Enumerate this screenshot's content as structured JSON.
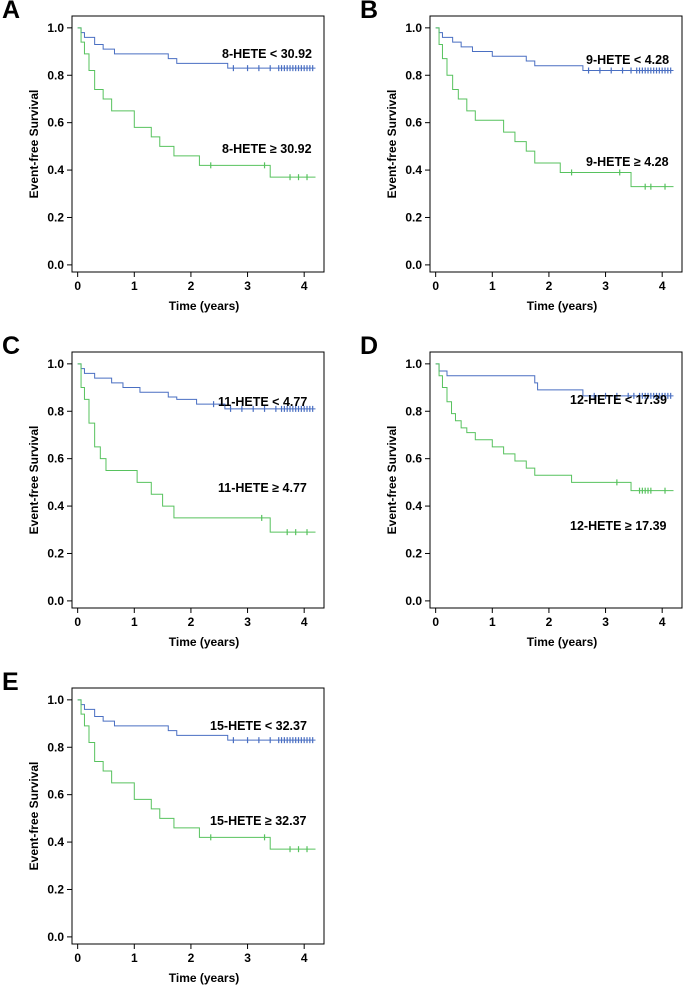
{
  "chart_data": [
    {
      "type": "line",
      "panel": "A",
      "xlabel": "Time (years)",
      "ylabel": "Event-free Survival",
      "xlim": [
        -0.1,
        4.35
      ],
      "ylim": [
        -0.03,
        1.05
      ],
      "xticks": [
        0,
        1,
        2,
        3,
        4
      ],
      "yticks": [
        0.0,
        0.2,
        0.4,
        0.6,
        0.8,
        1.0
      ],
      "ytick_labels": [
        "0.0",
        "0.2",
        "0.4",
        "0.6",
        "0.8",
        "1.0"
      ],
      "series": [
        {
          "name": "8-HETE < 30.92",
          "color": "#4a6fc2",
          "steps": [
            [
              0,
              1.0
            ],
            [
              0.06,
              0.98
            ],
            [
              0.12,
              0.96
            ],
            [
              0.3,
              0.93
            ],
            [
              0.45,
              0.91
            ],
            [
              0.65,
              0.89
            ],
            [
              1.6,
              0.87
            ],
            [
              1.75,
              0.85
            ],
            [
              2.65,
              0.83
            ],
            [
              4.2,
              0.83
            ]
          ],
          "censored": [
            2.75,
            3.0,
            3.2,
            3.4,
            3.55,
            3.6,
            3.65,
            3.7,
            3.75,
            3.8,
            3.85,
            3.9,
            3.95,
            4.0,
            4.05,
            4.1,
            4.15
          ]
        },
        {
          "name": "8-HETE ≥ 30.92",
          "color": "#57c25e",
          "steps": [
            [
              0,
              1.0
            ],
            [
              0.06,
              0.94
            ],
            [
              0.12,
              0.89
            ],
            [
              0.2,
              0.82
            ],
            [
              0.3,
              0.74
            ],
            [
              0.45,
              0.7
            ],
            [
              0.6,
              0.65
            ],
            [
              1.0,
              0.58
            ],
            [
              1.3,
              0.54
            ],
            [
              1.45,
              0.5
            ],
            [
              1.7,
              0.46
            ],
            [
              2.15,
              0.42
            ],
            [
              3.4,
              0.37
            ],
            [
              4.2,
              0.37
            ]
          ],
          "censored": [
            2.35,
            3.3,
            3.75,
            3.9,
            4.05
          ]
        }
      ]
    },
    {
      "type": "line",
      "panel": "B",
      "xlabel": "Time (years)",
      "ylabel": "Event-free Survival",
      "xlim": [
        -0.1,
        4.35
      ],
      "ylim": [
        -0.03,
        1.05
      ],
      "xticks": [
        0,
        1,
        2,
        3,
        4
      ],
      "yticks": [
        0.0,
        0.2,
        0.4,
        0.6,
        0.8,
        1.0
      ],
      "ytick_labels": [
        "0.0",
        "0.2",
        "0.4",
        "0.6",
        "0.8",
        "1.0"
      ],
      "series": [
        {
          "name": "9-HETE < 4.28",
          "color": "#4a6fc2",
          "steps": [
            [
              0,
              1.0
            ],
            [
              0.06,
              0.98
            ],
            [
              0.12,
              0.96
            ],
            [
              0.3,
              0.94
            ],
            [
              0.45,
              0.92
            ],
            [
              0.65,
              0.9
            ],
            [
              1.0,
              0.88
            ],
            [
              1.6,
              0.86
            ],
            [
              1.75,
              0.84
            ],
            [
              2.6,
              0.82
            ],
            [
              4.2,
              0.82
            ]
          ],
          "censored": [
            2.7,
            2.9,
            3.1,
            3.3,
            3.45,
            3.55,
            3.6,
            3.65,
            3.7,
            3.75,
            3.8,
            3.85,
            3.9,
            3.95,
            4.0,
            4.05,
            4.1,
            4.15
          ]
        },
        {
          "name": "9-HETE ≥ 4.28",
          "color": "#57c25e",
          "steps": [
            [
              0,
              1.0
            ],
            [
              0.06,
              0.93
            ],
            [
              0.12,
              0.87
            ],
            [
              0.2,
              0.8
            ],
            [
              0.3,
              0.74
            ],
            [
              0.4,
              0.7
            ],
            [
              0.55,
              0.65
            ],
            [
              0.7,
              0.61
            ],
            [
              1.2,
              0.56
            ],
            [
              1.4,
              0.52
            ],
            [
              1.6,
              0.48
            ],
            [
              1.75,
              0.43
            ],
            [
              2.2,
              0.39
            ],
            [
              3.45,
              0.33
            ],
            [
              4.2,
              0.33
            ]
          ],
          "censored": [
            2.4,
            3.25,
            3.7,
            3.8,
            4.05
          ]
        }
      ]
    },
    {
      "type": "line",
      "panel": "C",
      "xlabel": "Time (years)",
      "ylabel": "Event-free Survival",
      "xlim": [
        -0.1,
        4.35
      ],
      "ylim": [
        -0.03,
        1.05
      ],
      "xticks": [
        0,
        1,
        2,
        3,
        4
      ],
      "yticks": [
        0.0,
        0.2,
        0.4,
        0.6,
        0.8,
        1.0
      ],
      "ytick_labels": [
        "0.0",
        "0.2",
        "0.4",
        "0.6",
        "0.8",
        "1.0"
      ],
      "series": [
        {
          "name": "11-HETE < 4.77",
          "color": "#4a6fc2",
          "steps": [
            [
              0,
              1.0
            ],
            [
              0.06,
              0.98
            ],
            [
              0.12,
              0.96
            ],
            [
              0.3,
              0.94
            ],
            [
              0.6,
              0.92
            ],
            [
              0.8,
              0.9
            ],
            [
              1.1,
              0.88
            ],
            [
              1.6,
              0.86
            ],
            [
              1.75,
              0.85
            ],
            [
              2.1,
              0.83
            ],
            [
              2.6,
              0.81
            ],
            [
              4.2,
              0.81
            ]
          ],
          "censored": [
            2.4,
            2.7,
            2.9,
            3.1,
            3.3,
            3.5,
            3.6,
            3.65,
            3.7,
            3.75,
            3.8,
            3.85,
            3.9,
            3.95,
            4.0,
            4.05,
            4.1,
            4.15
          ]
        },
        {
          "name": "11-HETE ≥ 4.77",
          "color": "#57c25e",
          "steps": [
            [
              0,
              1.0
            ],
            [
              0.06,
              0.9
            ],
            [
              0.12,
              0.85
            ],
            [
              0.2,
              0.75
            ],
            [
              0.3,
              0.65
            ],
            [
              0.4,
              0.6
            ],
            [
              0.5,
              0.55
            ],
            [
              1.05,
              0.5
            ],
            [
              1.3,
              0.45
            ],
            [
              1.5,
              0.4
            ],
            [
              1.7,
              0.35
            ],
            [
              3.4,
              0.29
            ],
            [
              4.2,
              0.29
            ]
          ],
          "censored": [
            3.25,
            3.7,
            3.85,
            4.05
          ]
        }
      ]
    },
    {
      "type": "line",
      "panel": "D",
      "xlabel": "Time (years)",
      "ylabel": "Event-free Survival",
      "xlim": [
        -0.1,
        4.35
      ],
      "ylim": [
        -0.03,
        1.05
      ],
      "xticks": [
        0,
        1,
        2,
        3,
        4
      ],
      "yticks": [
        0.0,
        0.2,
        0.4,
        0.6,
        0.8,
        1.0
      ],
      "ytick_labels": [
        "0.0",
        "0.2",
        "0.4",
        "0.6",
        "0.8",
        "1.0"
      ],
      "series": [
        {
          "name": "12-HETE < 17.39",
          "color": "#4a6fc2",
          "steps": [
            [
              0,
              1.0
            ],
            [
              0.06,
              0.97
            ],
            [
              0.2,
              0.95
            ],
            [
              1.75,
              0.92
            ],
            [
              1.8,
              0.89
            ],
            [
              2.6,
              0.865
            ],
            [
              4.2,
              0.865
            ]
          ],
          "censored": [
            2.8,
            3.0,
            3.2,
            3.4,
            3.5,
            3.6,
            3.65,
            3.7,
            3.75,
            3.8,
            3.85,
            3.9,
            3.95,
            4.0,
            4.05,
            4.1,
            4.15
          ]
        },
        {
          "name": "12-HETE ≥ 17.39",
          "color": "#57c25e",
          "steps": [
            [
              0,
              1.0
            ],
            [
              0.06,
              0.95
            ],
            [
              0.12,
              0.9
            ],
            [
              0.2,
              0.84
            ],
            [
              0.28,
              0.79
            ],
            [
              0.35,
              0.76
            ],
            [
              0.45,
              0.73
            ],
            [
              0.55,
              0.71
            ],
            [
              0.7,
              0.68
            ],
            [
              1.0,
              0.65
            ],
            [
              1.2,
              0.62
            ],
            [
              1.4,
              0.59
            ],
            [
              1.6,
              0.56
            ],
            [
              1.75,
              0.53
            ],
            [
              2.4,
              0.5
            ],
            [
              3.45,
              0.465
            ],
            [
              4.2,
              0.465
            ]
          ],
          "censored": [
            3.2,
            3.6,
            3.65,
            3.7,
            3.75,
            3.8,
            4.05
          ]
        }
      ]
    },
    {
      "type": "line",
      "panel": "E",
      "xlabel": "Time (years)",
      "ylabel": "Event-free Survival",
      "xlim": [
        -0.1,
        4.35
      ],
      "ylim": [
        -0.03,
        1.05
      ],
      "xticks": [
        0,
        1,
        2,
        3,
        4
      ],
      "yticks": [
        0.0,
        0.2,
        0.4,
        0.6,
        0.8,
        1.0
      ],
      "ytick_labels": [
        "0.0",
        "0.2",
        "0.4",
        "0.6",
        "0.8",
        "1.0"
      ],
      "series": [
        {
          "name": "15-HETE < 32.37",
          "color": "#4a6fc2",
          "steps": [
            [
              0,
              1.0
            ],
            [
              0.06,
              0.98
            ],
            [
              0.12,
              0.96
            ],
            [
              0.3,
              0.93
            ],
            [
              0.45,
              0.91
            ],
            [
              0.65,
              0.89
            ],
            [
              1.6,
              0.87
            ],
            [
              1.75,
              0.85
            ],
            [
              2.65,
              0.83
            ],
            [
              4.2,
              0.83
            ]
          ],
          "censored": [
            2.75,
            3.0,
            3.2,
            3.4,
            3.55,
            3.6,
            3.65,
            3.7,
            3.75,
            3.8,
            3.85,
            3.9,
            3.95,
            4.0,
            4.05,
            4.1,
            4.15
          ]
        },
        {
          "name": "15-HETE ≥ 32.37",
          "color": "#57c25e",
          "steps": [
            [
              0,
              1.0
            ],
            [
              0.06,
              0.94
            ],
            [
              0.12,
              0.89
            ],
            [
              0.2,
              0.82
            ],
            [
              0.3,
              0.74
            ],
            [
              0.45,
              0.7
            ],
            [
              0.6,
              0.65
            ],
            [
              1.0,
              0.58
            ],
            [
              1.3,
              0.54
            ],
            [
              1.45,
              0.5
            ],
            [
              1.7,
              0.46
            ],
            [
              2.15,
              0.42
            ],
            [
              3.4,
              0.37
            ],
            [
              4.2,
              0.37
            ]
          ],
          "censored": [
            2.35,
            3.3,
            3.75,
            3.9,
            4.05
          ]
        }
      ]
    }
  ]
}
